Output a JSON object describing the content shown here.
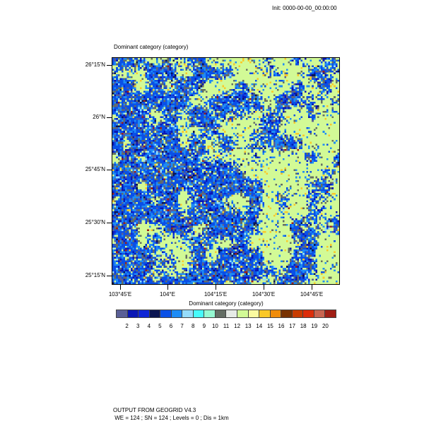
{
  "header": {
    "init": "Init: 0000-00-00_00:00:00"
  },
  "plot": {
    "title": "Dominant category   (category)",
    "lat_labels": [
      "26°15'N",
      "26°N",
      "25°45'N",
      "25°30'N",
      "25°15'N"
    ],
    "lon_labels": [
      "103°45'E",
      "104°E",
      "104°15'E",
      "104°30'E",
      "104°45'E"
    ]
  },
  "colorbar": {
    "title": "Dominant category  (category)",
    "labels": [
      "2",
      "3",
      "4",
      "5",
      "6",
      "7",
      "8",
      "9",
      "10",
      "11",
      "12",
      "13",
      "14",
      "15",
      "16",
      "17",
      "18",
      "19",
      "20"
    ],
    "colors": [
      "#5a5f96",
      "#0a17b4",
      "#0f26d6",
      "#0a1450",
      "#0a50e6",
      "#1e8cf5",
      "#96dcfa",
      "#46fafa",
      "#96fad2",
      "#646e64",
      "#e6ebe6",
      "#d2fa96",
      "#fafaa0",
      "#fac828",
      "#f08c0a",
      "#783200",
      "#c83c00",
      "#dc2d0a",
      "#c86450",
      "#a01e14"
    ]
  },
  "footer": {
    "line1": "OUTPUT FROM GEOGRID V4.3",
    "line2": " WE = 124 ; SN = 124 ; Levels = 0 ; Dis = 1km"
  }
}
